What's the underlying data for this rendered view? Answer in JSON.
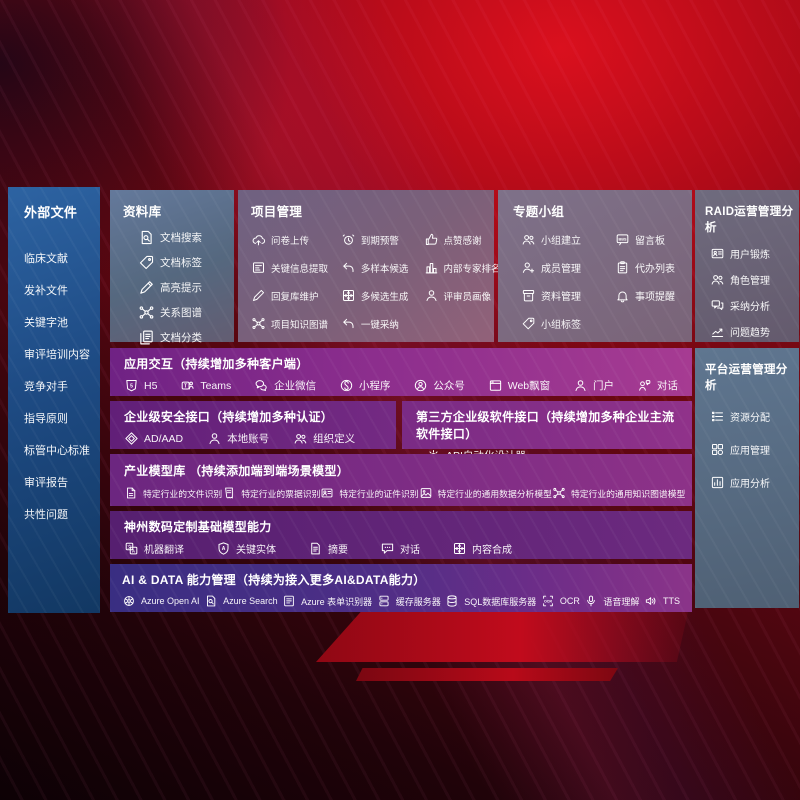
{
  "colors": {
    "background_red": "#b40a18",
    "accent_bright_red": "#c10b1c",
    "sidebar_blue": "#1e4b84",
    "panel_slate": "#5f7690",
    "row_magenta": "#8c2e8d",
    "row_violet": "#6c2a7f",
    "row_blue_purple": "#3c2e83"
  },
  "sidebar": {
    "title": "外部文件",
    "items": [
      {
        "label": "临床文献"
      },
      {
        "label": "发补文件"
      },
      {
        "label": "关键字池"
      },
      {
        "label": "审评培训内容"
      },
      {
        "label": "竞争对手"
      },
      {
        "label": "指导原则"
      },
      {
        "label": "标管中心标准"
      },
      {
        "label": "审评报告"
      },
      {
        "label": "共性问题"
      }
    ]
  },
  "panels": {
    "library": {
      "title": "资料库",
      "items": [
        {
          "icon": "doc-search",
          "label": "文档搜索"
        },
        {
          "icon": "tag",
          "label": "文档标签"
        },
        {
          "icon": "highlight-pen",
          "label": "高亮提示"
        },
        {
          "icon": "graph",
          "label": "关系图谱"
        },
        {
          "icon": "doc-stack",
          "label": "文档分类"
        }
      ]
    },
    "project": {
      "title": "项目管理",
      "items": [
        {
          "icon": "cloud-upload",
          "label": "问卷上传"
        },
        {
          "icon": "alarm",
          "label": "到期预警"
        },
        {
          "icon": "thumbs-up",
          "label": "点赞感谢"
        },
        {
          "icon": "doc-extract",
          "label": "关键信息提取"
        },
        {
          "icon": "reply-arrow",
          "label": "多样本候选"
        },
        {
          "icon": "podium",
          "label": "内部专家排名"
        },
        {
          "icon": "pen",
          "label": "回复库维护"
        },
        {
          "icon": "puzzle",
          "label": "多候选生成"
        },
        {
          "icon": "person",
          "label": "评审员画像"
        },
        {
          "icon": "graph",
          "label": "项目知识图谱"
        },
        {
          "icon": "reply-arrow",
          "label": "一键采纳"
        }
      ]
    },
    "groups": {
      "title": "专题小组",
      "items": [
        {
          "icon": "people",
          "label": "小组建立"
        },
        {
          "icon": "bbs",
          "label": "留言板"
        },
        {
          "icon": "person-add",
          "label": "成员管理"
        },
        {
          "icon": "clipboard",
          "label": "代办列表"
        },
        {
          "icon": "archive",
          "label": "资料管理"
        },
        {
          "icon": "bell",
          "label": "事项提醒"
        },
        {
          "icon": "tag",
          "label": "小组标签"
        }
      ]
    },
    "raid": {
      "title": "RAID运营管理分析",
      "items": [
        {
          "icon": "id-card",
          "label": "用户锻炼"
        },
        {
          "icon": "people",
          "label": "角色管理"
        },
        {
          "icon": "chat-qa",
          "label": "采纳分析"
        },
        {
          "icon": "trend",
          "label": "问题趋势"
        }
      ]
    },
    "platform": {
      "title": "平台运营管理分析",
      "items": [
        {
          "icon": "list",
          "label": "资源分配"
        },
        {
          "icon": "grid",
          "label": "应用管理"
        },
        {
          "icon": "chart",
          "label": "应用分析"
        }
      ]
    },
    "interaction": {
      "title": "应用交互（持续增加多种客户端）",
      "items": [
        {
          "icon": "h5",
          "label": "H5"
        },
        {
          "icon": "teams",
          "label": "Teams"
        },
        {
          "icon": "wechat-work",
          "label": "企业微信"
        },
        {
          "icon": "mini-program",
          "label": "小程序"
        },
        {
          "icon": "official-account",
          "label": "公众号"
        },
        {
          "icon": "web-window",
          "label": "Web飘窗"
        },
        {
          "icon": "person",
          "label": "门户"
        },
        {
          "icon": "chat-person",
          "label": "对话"
        }
      ]
    },
    "security": {
      "title": "企业级安全接口（持续增加多种认证）",
      "items": [
        {
          "icon": "ad-diamond",
          "label": "AD/AAD"
        },
        {
          "icon": "person",
          "label": "本地账号"
        },
        {
          "icon": "people",
          "label": "组织定义"
        }
      ]
    },
    "thirdparty": {
      "title": "第三方企业级软件接口（持续增加多种企业主流软件接口）",
      "items": [
        {
          "icon": "gear",
          "label": "API自动化设计器"
        }
      ]
    },
    "industry": {
      "title": "产业模型库 （持续添加端到端场景模型）",
      "items": [
        {
          "icon": "file",
          "label": "特定行业的文件识别"
        },
        {
          "icon": "receipt",
          "label": "特定行业的票据识别"
        },
        {
          "icon": "id-card",
          "label": "特定行业的证件识别"
        },
        {
          "icon": "image",
          "label": "特定行业的通用数据分析模型"
        },
        {
          "icon": "graph",
          "label": "特定行业的通用知识图谱模型"
        }
      ]
    },
    "dcmodels": {
      "title": "神州数码定制基础模型能力",
      "items": [
        {
          "icon": "translate",
          "label": "机器翻译"
        },
        {
          "icon": "shield-a",
          "label": "关键实体"
        },
        {
          "icon": "doc-lines",
          "label": "摘要"
        },
        {
          "icon": "chat",
          "label": "对话"
        },
        {
          "icon": "puzzle",
          "label": "内容合成"
        }
      ]
    },
    "aidata": {
      "title": "AI & DATA 能力管理（持续为接入更多AI&DATA能力）",
      "items": [
        {
          "icon": "openai",
          "label": "Azure Open AI"
        },
        {
          "icon": "doc-search",
          "label": "Azure Search"
        },
        {
          "icon": "form",
          "label": "Azure 表单识别器"
        },
        {
          "icon": "cache-server",
          "label": "缓存服务器"
        },
        {
          "icon": "database",
          "label": "SQL数据库服务器"
        },
        {
          "icon": "ocr",
          "label": "OCR"
        },
        {
          "icon": "voice",
          "label": "语音理解"
        },
        {
          "icon": "tts",
          "label": "TTS"
        }
      ]
    }
  }
}
